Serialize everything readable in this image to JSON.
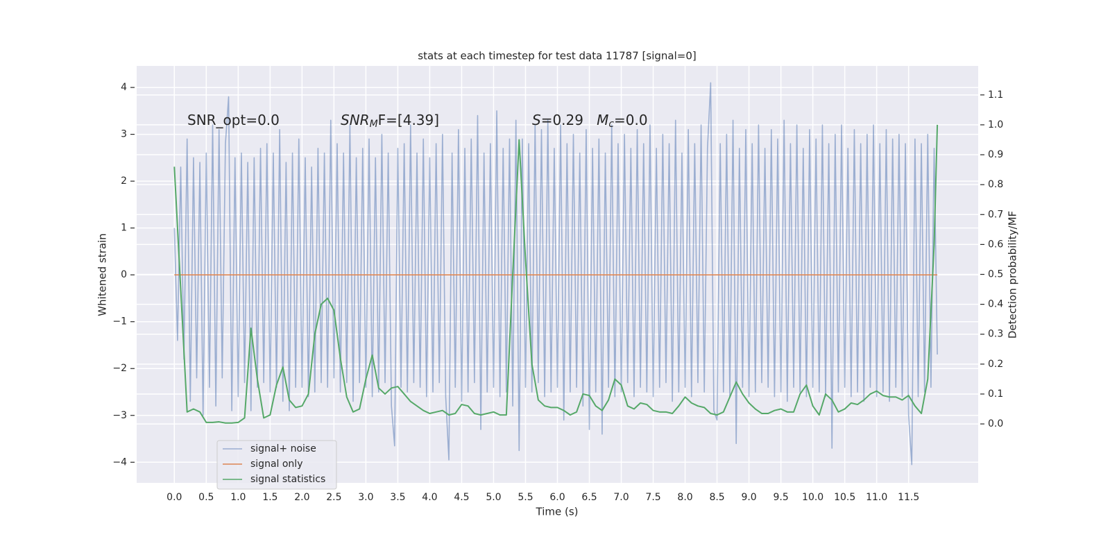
{
  "chart_data": {
    "type": "line",
    "title": "stats at each timestep for test data 11787 [signal=0]",
    "xlabel": "Time (s)",
    "ylabel": "Whitened strain",
    "y2label": "Detection probability/MF",
    "xlim": [
      -0.59,
      12.59
    ],
    "ylim": [
      -4.44,
      4.46
    ],
    "y2lim": [
      -0.197,
      1.197
    ],
    "xticks": [
      {
        "value": 0,
        "label": "0.0"
      },
      0.5,
      {
        "value": 1,
        "label": "1.0"
      },
      1.5,
      {
        "value": 2,
        "label": "2.0"
      },
      2.5,
      {
        "value": 3,
        "label": "3.0"
      },
      3.5,
      {
        "value": 4,
        "label": "4.0"
      },
      4.5,
      {
        "value": 5,
        "label": "5.0"
      },
      5.5,
      {
        "value": 6,
        "label": "6.0"
      },
      6.5,
      {
        "value": 7,
        "label": "7.0"
      },
      7.5,
      {
        "value": 8,
        "label": "8.0"
      },
      8.5,
      {
        "value": 9,
        "label": "9.0"
      },
      9.5,
      {
        "value": 10,
        "label": "10.0"
      },
      10.5,
      {
        "value": 11,
        "label": "11.0"
      },
      11.5
    ],
    "yticks": [
      {
        "value": -4,
        "label": "−4"
      },
      {
        "value": -3,
        "label": "−3"
      },
      {
        "value": -2,
        "label": "−2"
      },
      {
        "value": -1,
        "label": "−1"
      },
      0,
      1,
      2,
      3,
      4
    ],
    "y2ticks": [
      {
        "value": 0,
        "label": "0.0"
      },
      0.1,
      0.2,
      0.3,
      0.4,
      0.5,
      0.6,
      0.7,
      0.8,
      0.9,
      {
        "value": 1,
        "label": "1.0"
      },
      1.1
    ],
    "grid": true,
    "legend": "lower left",
    "annotations": [
      {
        "parts": [
          {
            "text": "SNR_opt=0.0"
          }
        ]
      },
      {
        "parts": [
          {
            "text": "SNR",
            "style": "italic"
          },
          {
            "text": "M",
            "style": "italic-sub"
          },
          {
            "text": "F=[4.39]"
          }
        ]
      },
      {
        "parts": [
          {
            "text": "S",
            "style": "italic"
          },
          {
            "text": "=0.29   "
          },
          {
            "text": "M",
            "style": "italic"
          },
          {
            "text": "c",
            "style": "italic-sub"
          },
          {
            "text": "=0.0"
          }
        ]
      }
    ],
    "series": [
      {
        "name": "signal+ noise",
        "color": "#4c72b0",
        "opacity": 0.5,
        "x": [
          0,
          0.05,
          0.1,
          0.15,
          0.2,
          0.25,
          0.3,
          0.35,
          0.4,
          0.45,
          0.5,
          0.55,
          0.6,
          0.65,
          0.7,
          0.75,
          0.8,
          0.85,
          0.9,
          0.95,
          1,
          1.05,
          1.1,
          1.15,
          1.2,
          1.25,
          1.3,
          1.35,
          1.4,
          1.45,
          1.5,
          1.55,
          1.6,
          1.65,
          1.7,
          1.75,
          1.8,
          1.85,
          1.9,
          1.95,
          2,
          2.05,
          2.1,
          2.15,
          2.2,
          2.25,
          2.3,
          2.35,
          2.4,
          2.45,
          2.5,
          2.55,
          2.6,
          2.65,
          2.7,
          2.75,
          2.8,
          2.85,
          2.9,
          2.95,
          3,
          3.05,
          3.1,
          3.15,
          3.2,
          3.25,
          3.3,
          3.35,
          3.4,
          3.45,
          3.5,
          3.55,
          3.6,
          3.65,
          3.7,
          3.75,
          3.8,
          3.85,
          3.9,
          3.95,
          4,
          4.05,
          4.1,
          4.15,
          4.2,
          4.25,
          4.3,
          4.35,
          4.4,
          4.45,
          4.5,
          4.55,
          4.6,
          4.65,
          4.7,
          4.75,
          4.8,
          4.85,
          4.9,
          4.95,
          5,
          5.05,
          5.1,
          5.15,
          5.2,
          5.25,
          5.3,
          5.35,
          5.4,
          5.45,
          5.5,
          5.55,
          5.6,
          5.65,
          5.7,
          5.75,
          5.8,
          5.85,
          5.9,
          5.95,
          6,
          6.05,
          6.1,
          6.15,
          6.2,
          6.25,
          6.3,
          6.35,
          6.4,
          6.45,
          6.5,
          6.55,
          6.6,
          6.65,
          6.7,
          6.75,
          6.8,
          6.85,
          6.9,
          6.95,
          7,
          7.05,
          7.1,
          7.15,
          7.2,
          7.25,
          7.3,
          7.35,
          7.4,
          7.45,
          7.5,
          7.55,
          7.6,
          7.65,
          7.7,
          7.75,
          7.8,
          7.85,
          7.9,
          7.95,
          8,
          8.05,
          8.1,
          8.15,
          8.2,
          8.25,
          8.3,
          8.35,
          8.4,
          8.45,
          8.5,
          8.55,
          8.6,
          8.65,
          8.7,
          8.75,
          8.8,
          8.85,
          8.9,
          8.95,
          9,
          9.05,
          9.1,
          9.15,
          9.2,
          9.25,
          9.3,
          9.35,
          9.4,
          9.45,
          9.5,
          9.55,
          9.6,
          9.65,
          9.7,
          9.75,
          9.8,
          9.85,
          9.9,
          9.95,
          10,
          10.05,
          10.1,
          10.15,
          10.2,
          10.25,
          10.3,
          10.35,
          10.4,
          10.45,
          10.5,
          10.55,
          10.6,
          10.65,
          10.7,
          10.75,
          10.8,
          10.85,
          10.9,
          10.95,
          11,
          11.05,
          11.1,
          11.15,
          11.2,
          11.25,
          11.3,
          11.35,
          11.4,
          11.45,
          11.5,
          11.55,
          11.6,
          11.65,
          11.7,
          11.75,
          11.8,
          11.85,
          11.9,
          11.95
        ],
        "values": [
          1.0,
          -1.4,
          2.3,
          -1.8,
          2.9,
          -2.7,
          2.5,
          -2.2,
          2.4,
          -3.0,
          2.6,
          -2.4,
          3.2,
          -2.8,
          3.1,
          -2.2,
          2.8,
          3.8,
          -2.9,
          2.5,
          -2.6,
          2.6,
          -2.3,
          2.4,
          -2.9,
          2.5,
          -2.4,
          2.7,
          -2.3,
          2.8,
          -2.5,
          2.6,
          -2.4,
          3.1,
          -2.7,
          2.4,
          -2.9,
          2.6,
          -2.4,
          2.9,
          -2.4,
          2.5,
          -2.6,
          2.3,
          -2.5,
          2.7,
          -2.3,
          2.6,
          -2.4,
          3.3,
          -2.2,
          2.8,
          -2.5,
          2.6,
          -2.3,
          3.2,
          -2.7,
          2.5,
          -2.3,
          2.7,
          -2.4,
          2.9,
          -2.6,
          2.5,
          -2.5,
          3.0,
          -2.3,
          2.6,
          -2.8,
          -3.65,
          2.7,
          -2.4,
          2.8,
          -2.5,
          3.2,
          -2.3,
          2.6,
          -2.4,
          2.9,
          -2.6,
          2.5,
          -2.5,
          2.8,
          -2.3,
          3.0,
          -2.6,
          -3.95,
          2.6,
          -2.4,
          3.1,
          -2.7,
          2.7,
          -2.5,
          2.9,
          -2.3,
          3.4,
          -3.3,
          2.6,
          -2.5,
          2.8,
          -2.4,
          3.5,
          -2.6,
          2.7,
          -2.5,
          2.9,
          -2.8,
          3.3,
          -3.75,
          2.9,
          -2.4,
          2.8,
          -2.5,
          3.2,
          -2.3,
          3.1,
          -2.6,
          3.3,
          -2.5,
          2.7,
          -2.4,
          3.2,
          -3.1,
          2.8,
          -2.5,
          3.0,
          -2.4,
          2.6,
          -2.8,
          3.1,
          -3.3,
          2.7,
          -2.5,
          2.9,
          -3.4,
          2.6,
          -2.4,
          3.2,
          -2.6,
          2.8,
          -2.5,
          3.0,
          -2.3,
          2.7,
          -2.6,
          3.1,
          -2.4,
          2.8,
          -2.5,
          3.2,
          -2.6,
          2.7,
          -2.4,
          3.0,
          -2.3,
          2.8,
          -2.7,
          3.3,
          -2.5,
          2.6,
          -2.4,
          3.1,
          -2.6,
          2.8,
          -2.3,
          3.2,
          -2.5,
          2.7,
          4.1,
          -2.9,
          -3.1,
          2.8,
          -2.5,
          3.0,
          -2.6,
          3.3,
          -3.6,
          2.7,
          -2.4,
          3.1,
          -2.6,
          2.8,
          -2.5,
          3.2,
          -2.3,
          2.7,
          -2.4,
          3.1,
          -2.6,
          2.9,
          -2.5,
          3.3,
          -2.7,
          2.8,
          -2.4,
          3.2,
          -2.5,
          2.7,
          -2.6,
          3.1,
          -2.4,
          2.9,
          -2.5,
          3.2,
          -2.6,
          2.8,
          -3.7,
          3.0,
          -2.5,
          3.2,
          -2.4,
          2.7,
          -2.6,
          3.1,
          -2.5,
          2.8,
          -2.7,
          3.0,
          -2.4,
          3.2,
          -2.6,
          2.8,
          -2.5,
          3.1,
          -2.7,
          2.9,
          -2.4,
          3.0,
          -2.6,
          2.8,
          -3.0,
          -4.05,
          2.9,
          -2.6,
          2.8,
          -2.5,
          3.0,
          -2.4,
          2.7,
          -1.7
        ]
      },
      {
        "name": "signal only",
        "color": "#dd8452",
        "x": [
          0,
          11.95
        ],
        "values": [
          0,
          0
        ]
      },
      {
        "name": "signal statistics",
        "color": "#55a868",
        "axis": "y2",
        "x": [
          0,
          0.1,
          0.2,
          0.3,
          0.4,
          0.5,
          0.6,
          0.7,
          0.8,
          0.9,
          1,
          1.1,
          1.2,
          1.3,
          1.4,
          1.5,
          1.6,
          1.7,
          1.8,
          1.9,
          2,
          2.1,
          2.2,
          2.3,
          2.4,
          2.5,
          2.6,
          2.7,
          2.8,
          2.9,
          3,
          3.1,
          3.2,
          3.3,
          3.4,
          3.5,
          3.6,
          3.7,
          3.8,
          3.9,
          4,
          4.1,
          4.2,
          4.3,
          4.4,
          4.5,
          4.6,
          4.7,
          4.8,
          4.9,
          5,
          5.1,
          5.2,
          5.3,
          5.4,
          5.5,
          5.6,
          5.7,
          5.8,
          5.9,
          6,
          6.1,
          6.2,
          6.3,
          6.4,
          6.5,
          6.6,
          6.7,
          6.8,
          6.9,
          7,
          7.1,
          7.2,
          7.3,
          7.4,
          7.5,
          7.6,
          7.7,
          7.8,
          7.9,
          8,
          8.1,
          8.2,
          8.3,
          8.4,
          8.5,
          8.6,
          8.7,
          8.8,
          8.9,
          9,
          9.1,
          9.2,
          9.3,
          9.4,
          9.5,
          9.6,
          9.7,
          9.8,
          9.9,
          10,
          10.1,
          10.2,
          10.3,
          10.4,
          10.5,
          10.6,
          10.7,
          10.8,
          10.9,
          11,
          11.1,
          11.2,
          11.3,
          11.4,
          11.5,
          11.6,
          11.7,
          11.8,
          11.9,
          11.95
        ],
        "values": [
          0.86,
          0.45,
          0.04,
          0.05,
          0.04,
          0.005,
          0.005,
          0.007,
          0.003,
          0.003,
          0.005,
          0.02,
          0.32,
          0.15,
          0.02,
          0.03,
          0.13,
          0.19,
          0.08,
          0.055,
          0.06,
          0.1,
          0.3,
          0.4,
          0.42,
          0.38,
          0.22,
          0.09,
          0.04,
          0.05,
          0.15,
          0.23,
          0.12,
          0.1,
          0.12,
          0.125,
          0.1,
          0.075,
          0.06,
          0.045,
          0.035,
          0.04,
          0.045,
          0.03,
          0.035,
          0.065,
          0.06,
          0.035,
          0.03,
          0.035,
          0.04,
          0.03,
          0.03,
          0.5,
          0.95,
          0.55,
          0.2,
          0.08,
          0.06,
          0.055,
          0.055,
          0.045,
          0.03,
          0.04,
          0.1,
          0.095,
          0.06,
          0.045,
          0.08,
          0.15,
          0.13,
          0.06,
          0.05,
          0.07,
          0.065,
          0.045,
          0.04,
          0.04,
          0.035,
          0.06,
          0.09,
          0.07,
          0.06,
          0.055,
          0.035,
          0.03,
          0.04,
          0.09,
          0.14,
          0.1,
          0.07,
          0.05,
          0.035,
          0.035,
          0.045,
          0.05,
          0.04,
          0.04,
          0.1,
          0.13,
          0.06,
          0.03,
          0.1,
          0.08,
          0.04,
          0.05,
          0.07,
          0.065,
          0.08,
          0.1,
          0.11,
          0.095,
          0.09,
          0.09,
          0.08,
          0.095,
          0.06,
          0.035,
          0.15,
          0.6,
          1.0
        ]
      }
    ]
  }
}
